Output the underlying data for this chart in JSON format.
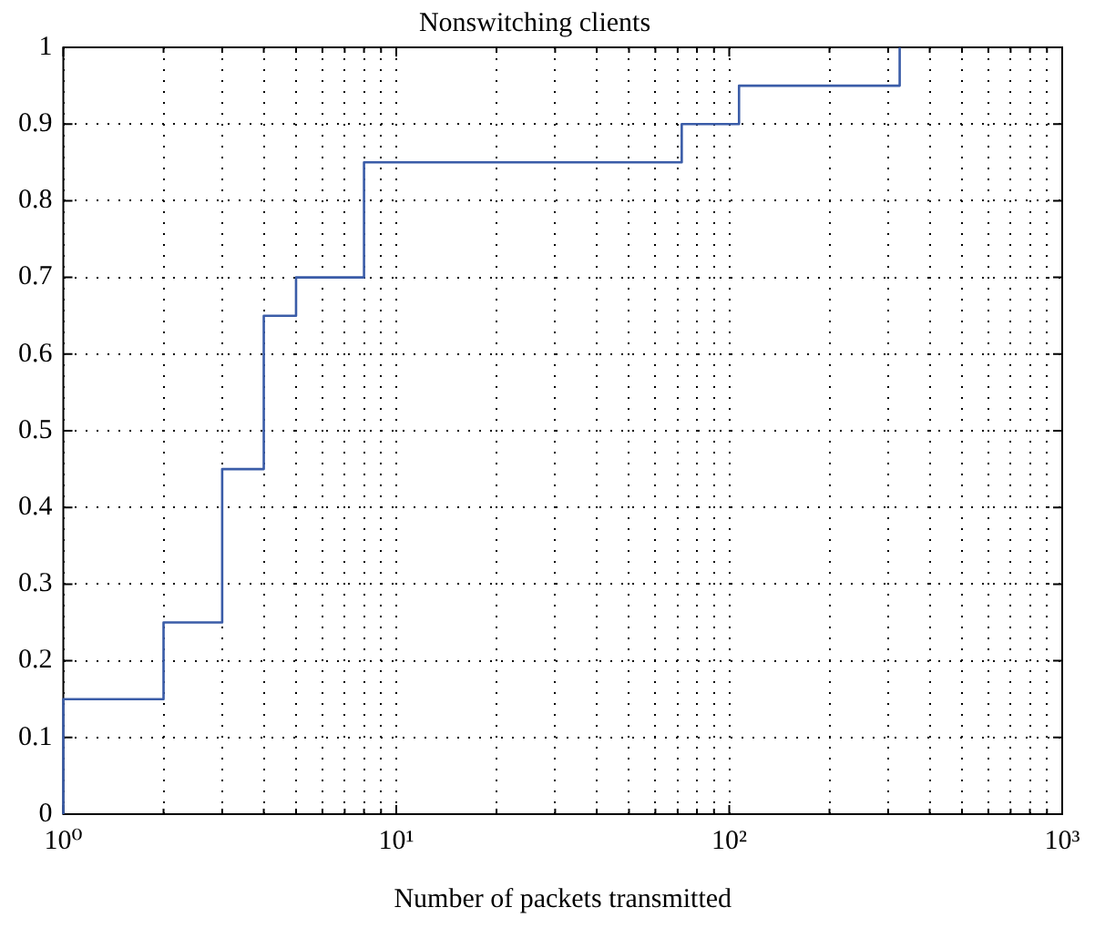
{
  "chart_data": {
    "type": "step",
    "title": "Nonswitching clients",
    "xlabel": "Number of packets transmitted",
    "log": "x",
    "grid": true,
    "legend": false,
    "marker": "none",
    "line_style": "solid",
    "xlim": [
      1,
      1000
    ],
    "xticks": [
      {
        "value": 1,
        "label": "10⁰"
      },
      {
        "value": 2,
        "label": null
      },
      {
        "value": 3,
        "label": null
      },
      {
        "value": 4,
        "label": null
      },
      {
        "value": 5,
        "label": null
      },
      {
        "value": 6,
        "label": null
      },
      {
        "value": 7,
        "label": null
      },
      {
        "value": 8,
        "label": null
      },
      {
        "value": 9,
        "label": null
      },
      {
        "value": 10,
        "label": "10¹"
      },
      {
        "value": 20,
        "label": null
      },
      {
        "value": 30,
        "label": null
      },
      {
        "value": 40,
        "label": null
      },
      {
        "value": 50,
        "label": null
      },
      {
        "value": 60,
        "label": null
      },
      {
        "value": 70,
        "label": null
      },
      {
        "value": 80,
        "label": null
      },
      {
        "value": 90,
        "label": null
      },
      {
        "value": 100,
        "label": "10²"
      },
      {
        "value": 200,
        "label": null
      },
      {
        "value": 300,
        "label": null
      },
      {
        "value": 400,
        "label": null
      },
      {
        "value": 500,
        "label": null
      },
      {
        "value": 600,
        "label": null
      },
      {
        "value": 700,
        "label": null
      },
      {
        "value": 800,
        "label": null
      },
      {
        "value": 900,
        "label": null
      },
      {
        "value": 1000,
        "label": "10³"
      }
    ],
    "ylim": [
      0,
      1
    ],
    "yticks": [
      0,
      0.1,
      0.2,
      0.3,
      0.4,
      0.5,
      0.6,
      0.7,
      0.8,
      0.9,
      1
    ],
    "x": [
      1,
      1,
      2,
      3,
      4,
      5,
      8,
      72,
      107,
      325
    ],
    "series": [
      {
        "color": "#3a5ca8",
        "values": [
          0,
          0.15,
          0.25,
          0.45,
          0.65,
          0.7,
          0.85,
          0.9,
          0.95,
          1
        ]
      }
    ]
  }
}
